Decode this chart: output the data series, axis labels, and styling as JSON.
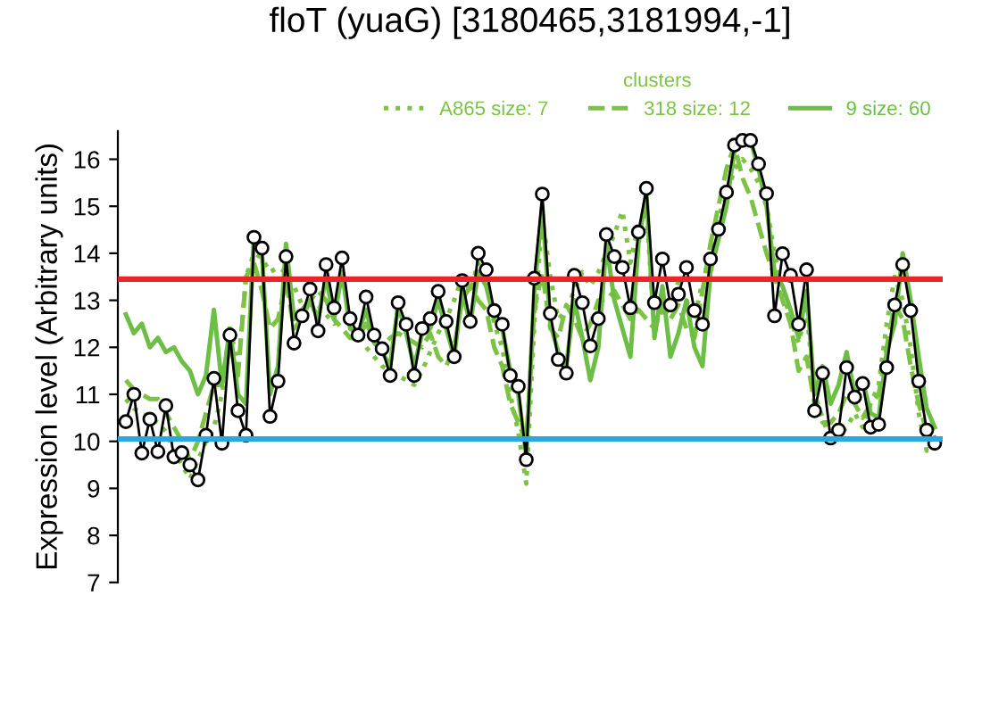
{
  "chart_data": {
    "type": "line",
    "title": "floT (yuaG) [3180465,3181994,-1]",
    "ylabel": "Expression level (Arbitrary units)",
    "legend_title": "clusters",
    "legend": "top right",
    "tick_labels": "y",
    "grid": false,
    "categories": [
      null,
      null,
      null,
      null,
      null,
      null,
      null,
      null,
      null,
      null,
      null,
      null,
      null,
      null,
      null,
      null,
      null,
      null,
      null,
      null,
      null,
      null,
      null,
      null,
      null,
      null,
      null,
      null,
      null,
      null,
      null,
      null,
      null,
      null,
      null,
      null,
      null,
      null,
      null,
      null,
      null,
      null,
      null,
      null,
      null,
      null,
      null,
      null,
      null,
      null,
      null,
      null,
      null,
      null,
      null,
      null,
      null,
      null,
      null,
      null,
      null,
      null,
      null,
      null,
      null,
      null,
      null,
      null,
      null,
      null,
      null,
      null,
      null,
      null,
      null,
      null,
      null,
      null,
      null,
      null,
      null,
      null,
      null,
      null,
      null,
      null,
      null,
      null,
      null,
      null,
      null,
      null,
      null,
      null,
      null,
      null,
      null,
      null,
      null,
      null,
      null,
      null
    ],
    "ylim": [
      7,
      16.6
    ],
    "yticks": [
      7,
      8,
      9,
      10,
      11,
      12,
      13,
      14,
      15,
      16
    ],
    "series": [
      {
        "name": "A865 size: 7",
        "color": "#7cc243",
        "line_style": "dotted",
        "marker": "none",
        "values": [
          10.9,
          10.7,
          10.6,
          10.5,
          10.4,
          10.2,
          9.8,
          9.5,
          9.2,
          9.6,
          10.0,
          10.3,
          11.0,
          12.5,
          11.5,
          13.5,
          14.0,
          13.9,
          13.6,
          13.7,
          13.6,
          13.3,
          12.9,
          12.9,
          12.9,
          12.7,
          12.5,
          12.6,
          12.5,
          12.3,
          12.0,
          11.8,
          11.6,
          11.5,
          11.4,
          11.3,
          11.2,
          11.5,
          11.9,
          12.3,
          12.6,
          13.0,
          13.5,
          13.2,
          13.8,
          13.4,
          12.5,
          12.0,
          11.0,
          10.2,
          9.1,
          12.5,
          14.8,
          13.5,
          12.6,
          12.8,
          13.2,
          13.6,
          13.3,
          13.6,
          14.0,
          14.4,
          14.9,
          13.8,
          14.6,
          14.9,
          12.4,
          12.8,
          12.9,
          13.4,
          13.0,
          12.6,
          13.4,
          14.0,
          14.8,
          15.2,
          15.8,
          16.0,
          15.8,
          15.5,
          15.0,
          14.0,
          13.2,
          12.6,
          12.1,
          12.8,
          11.0,
          10.5,
          10.0,
          10.1,
          10.3,
          10.6,
          10.3,
          10.8,
          11.2,
          12.5,
          13.5,
          13.0,
          12.0,
          10.6,
          9.8,
          10.0
        ]
      },
      {
        "name": "318 size: 12",
        "color": "#7cc243",
        "line_style": "dashed",
        "marker": "none",
        "values": [
          11.3,
          11.1,
          11.0,
          10.9,
          10.9,
          10.6,
          10.3,
          10.0,
          9.6,
          10.0,
          10.6,
          11.2,
          11.2,
          12.0,
          11.4,
          13.5,
          13.8,
          13.2,
          12.4,
          12.6,
          13.4,
          12.4,
          12.6,
          13.0,
          13.2,
          13.0,
          12.6,
          12.4,
          12.2,
          12.2,
          12.5,
          12.2,
          12.0,
          12.2,
          12.3,
          12.2,
          12.1,
          12.0,
          12.3,
          11.8,
          11.6,
          12.0,
          13.0,
          13.3,
          13.0,
          12.8,
          12.0,
          11.6,
          10.8,
          10.4,
          10.0,
          12.8,
          13.6,
          12.4,
          12.2,
          12.9,
          12.6,
          12.2,
          12.5,
          13.0,
          13.0,
          13.2,
          12.9,
          12.6,
          12.8,
          12.6,
          12.4,
          12.9,
          12.6,
          12.9,
          12.4,
          12.2,
          13.2,
          14.2,
          15.0,
          15.8,
          16.3,
          15.6,
          15.2,
          14.6,
          14.0,
          13.5,
          13.0,
          12.5,
          11.5,
          11.8,
          10.8,
          10.4,
          10.4,
          10.6,
          11.0,
          10.8,
          10.5,
          10.8,
          11.0,
          12.0,
          12.9,
          12.6,
          11.6,
          10.8,
          10.2,
          10.1
        ]
      },
      {
        "name": "9 size: 60",
        "color": "#6cbf44",
        "line_style": "solid",
        "marker": "none",
        "values": [
          12.7,
          12.3,
          12.5,
          12.0,
          12.2,
          11.9,
          12.0,
          11.7,
          11.5,
          11.0,
          11.4,
          12.8,
          11.2,
          12.4,
          11.0,
          10.8,
          14.4,
          14.0,
          11.0,
          11.6,
          14.2,
          12.6,
          12.8,
          13.0,
          12.6,
          13.5,
          12.6,
          13.6,
          12.4,
          12.3,
          12.8,
          12.1,
          11.9,
          11.6,
          12.9,
          12.3,
          11.6,
          12.3,
          12.4,
          13.0,
          12.4,
          11.8,
          13.2,
          12.5,
          13.6,
          13.3,
          12.6,
          12.4,
          11.5,
          11.0,
          9.7,
          13.2,
          15.0,
          12.5,
          11.9,
          11.6,
          13.0,
          12.2,
          11.3,
          12.0,
          14.2,
          13.0,
          12.4,
          11.8,
          14.2,
          15.3,
          12.2,
          13.3,
          11.8,
          12.3,
          13.0,
          12.0,
          11.6,
          13.6,
          14.3,
          15.0,
          16.2,
          16.5,
          16.4,
          15.8,
          15.0,
          13.6,
          13.3,
          12.8,
          12.2,
          13.2,
          11.0,
          11.6,
          10.8,
          11.2,
          11.9,
          11.0,
          11.3,
          10.6,
          10.5,
          11.9,
          12.5,
          14.0,
          13.0,
          11.8,
          10.7,
          10.3
        ]
      },
      {
        "color": "#000000",
        "line_style": "solid",
        "marker": "circle",
        "values": [
          10.42,
          11.0,
          9.75,
          10.47,
          9.78,
          10.76,
          9.67,
          9.76,
          9.5,
          9.18,
          10.13,
          11.34,
          9.96,
          12.26,
          10.65,
          10.13,
          14.34,
          14.11,
          10.53,
          11.28,
          13.93,
          12.09,
          12.67,
          13.24,
          12.35,
          13.76,
          12.84,
          13.9,
          12.61,
          12.26,
          13.07,
          12.26,
          11.97,
          11.4,
          12.95,
          12.49,
          11.4,
          12.4,
          12.61,
          13.19,
          12.55,
          11.8,
          13.42,
          12.55,
          14.0,
          13.65,
          12.78,
          12.49,
          11.4,
          11.17,
          9.61,
          13.47,
          15.26,
          12.72,
          11.74,
          11.45,
          13.53,
          12.95,
          12.03,
          12.61,
          14.4,
          13.93,
          13.7,
          12.84,
          14.45,
          15.38,
          12.95,
          13.88,
          12.9,
          13.13,
          13.7,
          12.78,
          12.49,
          13.88,
          14.51,
          15.3,
          16.3,
          16.4,
          16.4,
          15.9,
          15.27,
          12.67,
          13.99,
          13.53,
          12.49,
          13.65,
          10.65,
          11.45,
          10.07,
          10.24,
          11.57,
          10.94,
          11.23,
          10.3,
          10.36,
          11.57,
          12.9,
          13.76,
          12.78,
          11.28,
          10.24,
          9.96
        ]
      }
    ],
    "ref_lines": [
      {
        "axis": "y",
        "value": 13.45,
        "color": "#e8262a"
      },
      {
        "axis": "y",
        "value": 10.05,
        "color": "#29a8e0"
      }
    ]
  }
}
